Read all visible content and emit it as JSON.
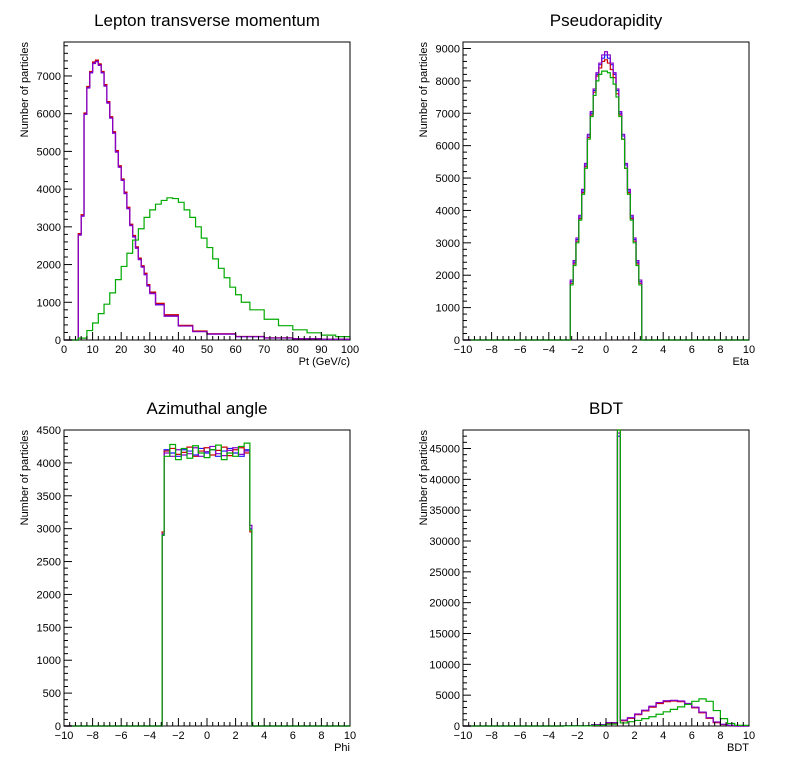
{
  "chart_data": [
    {
      "type": "step",
      "title": "Lepton transverse momentum",
      "xlabel": "Pt (GeV/c)",
      "ylabel": "Number of particles",
      "xlim": [
        0,
        100
      ],
      "ylim": [
        0,
        7900
      ],
      "xticks": [
        0,
        10,
        20,
        30,
        40,
        50,
        60,
        70,
        80,
        90,
        100
      ],
      "yticks": [
        0,
        1000,
        2000,
        3000,
        4000,
        5000,
        6000,
        7000
      ],
      "series": [
        {
          "color": "#1a1aff",
          "x": [
            0,
            5,
            6,
            7,
            8,
            9,
            10,
            11,
            12,
            13,
            14,
            15,
            16,
            17,
            18,
            19,
            20,
            21,
            22,
            23,
            24,
            25,
            26,
            27,
            28,
            29,
            30,
            32,
            35,
            40,
            45,
            50,
            60,
            70,
            80,
            90,
            100
          ],
          "y": [
            0,
            2800,
            3300,
            6000,
            6700,
            7100,
            7350,
            7400,
            7300,
            7100,
            6750,
            6300,
            5900,
            5500,
            5000,
            4600,
            4250,
            3900,
            3500,
            3050,
            2750,
            2450,
            2150,
            1950,
            1750,
            1450,
            1250,
            950,
            650,
            380,
            230,
            160,
            90,
            55,
            35,
            20,
            10
          ]
        },
        {
          "color": "#cc0000",
          "x": [
            0,
            5,
            6,
            7,
            8,
            9,
            10,
            11,
            12,
            13,
            14,
            15,
            16,
            17,
            18,
            19,
            20,
            21,
            22,
            23,
            24,
            25,
            26,
            27,
            28,
            29,
            30,
            32,
            35,
            40,
            45,
            50,
            60,
            70,
            80,
            90,
            100
          ],
          "y": [
            0,
            2820,
            3320,
            6020,
            6720,
            7120,
            7370,
            7420,
            7320,
            7120,
            6770,
            6320,
            5920,
            5520,
            5020,
            4620,
            4270,
            3920,
            3520,
            3070,
            2770,
            2470,
            2170,
            1970,
            1770,
            1470,
            1270,
            970,
            670,
            390,
            240,
            165,
            95,
            58,
            36,
            21,
            11
          ]
        },
        {
          "color": "#8800cc",
          "x": [
            0,
            5,
            6,
            7,
            8,
            9,
            10,
            11,
            12,
            13,
            14,
            15,
            16,
            17,
            18,
            19,
            20,
            21,
            22,
            23,
            24,
            25,
            26,
            27,
            28,
            29,
            30,
            32,
            35,
            40,
            45,
            50,
            60,
            70,
            80,
            90,
            100
          ],
          "y": [
            0,
            2780,
            3280,
            5980,
            6680,
            7080,
            7330,
            7380,
            7280,
            7080,
            6730,
            6280,
            5880,
            5480,
            4980,
            4580,
            4230,
            3880,
            3480,
            3030,
            2730,
            2430,
            2130,
            1930,
            1730,
            1430,
            1230,
            930,
            630,
            370,
            220,
            155,
            88,
            52,
            33,
            19,
            9
          ]
        },
        {
          "color": "#00aa00",
          "x": [
            0,
            5,
            8,
            10,
            12,
            14,
            16,
            18,
            20,
            22,
            24,
            26,
            28,
            30,
            32,
            34,
            36,
            38,
            40,
            42,
            44,
            46,
            48,
            50,
            52,
            54,
            56,
            58,
            60,
            62,
            65,
            70,
            75,
            80,
            85,
            90,
            95,
            100
          ],
          "y": [
            0,
            50,
            250,
            450,
            700,
            950,
            1250,
            1600,
            1950,
            2300,
            2650,
            2950,
            3250,
            3450,
            3600,
            3700,
            3770,
            3750,
            3650,
            3450,
            3250,
            3000,
            2700,
            2450,
            2150,
            1900,
            1650,
            1400,
            1200,
            1000,
            800,
            550,
            380,
            270,
            190,
            130,
            90,
            60
          ]
        }
      ]
    },
    {
      "type": "step",
      "title": "Pseudorapidity",
      "xlabel": "Eta",
      "ylabel": "Number of particles",
      "xlim": [
        -10,
        10
      ],
      "ylim": [
        0,
        9200
      ],
      "xticks": [
        -10,
        -8,
        -6,
        -4,
        -2,
        0,
        2,
        4,
        6,
        8,
        10
      ],
      "yticks": [
        0,
        1000,
        2000,
        3000,
        4000,
        5000,
        6000,
        7000,
        8000,
        9000
      ],
      "series": [
        {
          "color": "#1a1aff",
          "x": [
            -10,
            -2.5,
            -2.3,
            -2.1,
            -1.9,
            -1.7,
            -1.5,
            -1.3,
            -1.1,
            -0.9,
            -0.7,
            -0.5,
            -0.3,
            -0.1,
            0.1,
            0.3,
            0.5,
            0.7,
            0.9,
            1.1,
            1.3,
            1.5,
            1.7,
            1.9,
            2.1,
            2.3,
            2.5,
            10
          ],
          "y": [
            0,
            1800,
            2400,
            3100,
            3800,
            4600,
            5400,
            6300,
            7000,
            7700,
            8200,
            8500,
            8700,
            8800,
            8700,
            8500,
            8200,
            7700,
            7000,
            6300,
            5400,
            4600,
            3800,
            3100,
            2400,
            1800,
            0,
            0
          ]
        },
        {
          "color": "#cc0000",
          "x": [
            -10,
            -2.5,
            -2.3,
            -2.1,
            -1.9,
            -1.7,
            -1.5,
            -1.3,
            -1.1,
            -0.9,
            -0.7,
            -0.5,
            -0.3,
            -0.1,
            0.1,
            0.3,
            0.5,
            0.7,
            0.9,
            1.1,
            1.3,
            1.5,
            1.7,
            1.9,
            2.1,
            2.3,
            2.5,
            10
          ],
          "y": [
            0,
            1750,
            2350,
            3050,
            3750,
            4550,
            5350,
            6250,
            6950,
            7650,
            8150,
            8400,
            8600,
            8650,
            8550,
            8350,
            8100,
            7600,
            6950,
            6200,
            5300,
            4550,
            3750,
            3050,
            2350,
            1750,
            0,
            0
          ]
        },
        {
          "color": "#8800cc",
          "x": [
            -10,
            -2.5,
            -2.3,
            -2.1,
            -1.9,
            -1.7,
            -1.5,
            -1.3,
            -1.1,
            -0.9,
            -0.7,
            -0.5,
            -0.3,
            -0.1,
            0.1,
            0.3,
            0.5,
            0.7,
            0.9,
            1.1,
            1.3,
            1.5,
            1.7,
            1.9,
            2.1,
            2.3,
            2.5,
            10
          ],
          "y": [
            0,
            1850,
            2450,
            3150,
            3850,
            4650,
            5450,
            6350,
            7050,
            7750,
            8250,
            8550,
            8800,
            8900,
            8800,
            8550,
            8250,
            7750,
            7050,
            6350,
            5450,
            4650,
            3850,
            3150,
            2450,
            1850,
            0,
            0
          ]
        },
        {
          "color": "#00aa00",
          "x": [
            -10,
            -2.5,
            -2.3,
            -2.1,
            -1.9,
            -1.7,
            -1.5,
            -1.3,
            -1.1,
            -0.9,
            -0.7,
            -0.5,
            -0.3,
            -0.1,
            0.1,
            0.3,
            0.5,
            0.7,
            0.9,
            1.1,
            1.3,
            1.5,
            1.7,
            1.9,
            2.1,
            2.3,
            2.5,
            10
          ],
          "y": [
            0,
            1700,
            2300,
            3000,
            3700,
            4500,
            5300,
            6200,
            6900,
            7550,
            8000,
            8200,
            8300,
            8300,
            8250,
            8100,
            7900,
            7500,
            6900,
            6200,
            5300,
            4500,
            3700,
            3000,
            2300,
            1700,
            0,
            0
          ]
        }
      ]
    },
    {
      "type": "step",
      "title": "Azimuthal angle",
      "xlabel": "Phi",
      "ylabel": "Number of particles",
      "xlim": [
        -10,
        10
      ],
      "ylim": [
        0,
        4500
      ],
      "xticks": [
        -10,
        -8,
        -6,
        -4,
        -2,
        0,
        2,
        4,
        6,
        8,
        10
      ],
      "yticks": [
        0,
        500,
        1000,
        1500,
        2000,
        2500,
        3000,
        3500,
        4000,
        4500
      ],
      "series": [
        {
          "color": "#1a1aff",
          "x": [
            -10,
            -3.14,
            -3.0,
            -2.6,
            -2.2,
            -1.8,
            -1.4,
            -1.0,
            -0.6,
            -0.2,
            0.2,
            0.6,
            1.0,
            1.4,
            1.8,
            2.2,
            2.6,
            3.0,
            3.14,
            10
          ],
          "y": [
            0,
            2900,
            4200,
            4150,
            4100,
            4200,
            4180,
            4120,
            4220,
            4150,
            4200,
            4100,
            4180,
            4220,
            4150,
            4100,
            4200,
            3000,
            0,
            0
          ]
        },
        {
          "color": "#cc0000",
          "x": [
            -10,
            -3.14,
            -3.0,
            -2.6,
            -2.2,
            -1.8,
            -1.4,
            -1.0,
            -0.6,
            -0.2,
            0.2,
            0.6,
            1.0,
            1.4,
            1.8,
            2.2,
            2.6,
            3.0,
            3.14,
            10
          ],
          "y": [
            0,
            2950,
            4180,
            4220,
            4130,
            4160,
            4240,
            4100,
            4180,
            4230,
            4120,
            4190,
            4240,
            4110,
            4200,
            4230,
            4150,
            2950,
            0,
            0
          ]
        },
        {
          "color": "#8800cc",
          "x": [
            -10,
            -3.14,
            -3.0,
            -2.6,
            -2.2,
            -1.8,
            -1.4,
            -1.0,
            -0.6,
            -0.2,
            0.2,
            0.6,
            1.0,
            1.4,
            1.8,
            2.2,
            2.6,
            3.0,
            3.14,
            10
          ],
          "y": [
            0,
            2920,
            4150,
            4100,
            4200,
            4120,
            4140,
            4230,
            4100,
            4170,
            4250,
            4140,
            4110,
            4190,
            4230,
            4130,
            4180,
            3050,
            0,
            0
          ]
        },
        {
          "color": "#00aa00",
          "x": [
            -10,
            -3.14,
            -3.0,
            -2.6,
            -2.2,
            -1.8,
            -1.4,
            -1.0,
            -0.6,
            -0.2,
            0.2,
            0.6,
            1.0,
            1.4,
            1.8,
            2.2,
            2.6,
            3.0,
            3.14,
            10
          ],
          "y": [
            0,
            2900,
            4100,
            4280,
            4050,
            4220,
            4070,
            4260,
            4150,
            4080,
            4200,
            4270,
            4050,
            4150,
            4100,
            4250,
            4300,
            2980,
            0,
            0
          ]
        }
      ]
    },
    {
      "type": "step",
      "title": "BDT",
      "xlabel": "BDT",
      "ylabel": "Number of particles",
      "xlim": [
        -10,
        10
      ],
      "ylim": [
        0,
        48000
      ],
      "xticks": [
        -10,
        -8,
        -6,
        -4,
        -2,
        0,
        2,
        4,
        6,
        8,
        10
      ],
      "yticks": [
        0,
        5000,
        10000,
        15000,
        20000,
        25000,
        30000,
        35000,
        40000,
        45000
      ],
      "series": [
        {
          "color": "#1a1aff",
          "x": [
            -10,
            -3,
            -1,
            0,
            0.8,
            1.0,
            1.5,
            2,
            2.5,
            3,
            3.5,
            4,
            4.5,
            5,
            5.5,
            6,
            6.5,
            7,
            7.5,
            8,
            8.5,
            9,
            10
          ],
          "y": [
            0,
            50,
            200,
            500,
            47000,
            900,
            1300,
            1900,
            2500,
            3100,
            3700,
            4000,
            4100,
            4000,
            3600,
            3000,
            2200,
            1300,
            600,
            250,
            80,
            0,
            0
          ]
        },
        {
          "color": "#cc0000",
          "x": [
            -10,
            -3,
            -1,
            0,
            0.8,
            1.0,
            1.5,
            2,
            2.5,
            3,
            3.5,
            4,
            4.5,
            5,
            5.5,
            6,
            6.5,
            7,
            7.5,
            8,
            8.5,
            9,
            10
          ],
          "y": [
            0,
            40,
            180,
            450,
            48000,
            850,
            1250,
            1850,
            2450,
            3050,
            3650,
            3950,
            4050,
            3950,
            3550,
            2950,
            2150,
            1250,
            550,
            230,
            70,
            0,
            0
          ]
        },
        {
          "color": "#8800cc",
          "x": [
            -10,
            -3,
            -1,
            0,
            0.8,
            1.0,
            1.5,
            2,
            2.5,
            3,
            3.5,
            4,
            4.5,
            5,
            5.5,
            6,
            6.5,
            7,
            7.5,
            8,
            8.5,
            9,
            10
          ],
          "y": [
            0,
            60,
            220,
            550,
            47500,
            950,
            1350,
            1950,
            2550,
            3200,
            3800,
            4100,
            4150,
            4050,
            3650,
            3050,
            2250,
            1350,
            650,
            270,
            90,
            0,
            0
          ]
        },
        {
          "color": "#00aa00",
          "x": [
            -10,
            -3,
            -1,
            0,
            0.8,
            1.0,
            1.5,
            2,
            2.5,
            3,
            3.5,
            4,
            4.5,
            5,
            5.5,
            6,
            6.5,
            7,
            7.5,
            8,
            8.5,
            9,
            10
          ],
          "y": [
            0,
            20,
            100,
            300,
            48000,
            500,
            700,
            900,
            1200,
            1500,
            1900,
            2300,
            2700,
            3100,
            3500,
            4000,
            4400,
            4000,
            2500,
            1200,
            400,
            100,
            0
          ]
        }
      ]
    }
  ]
}
